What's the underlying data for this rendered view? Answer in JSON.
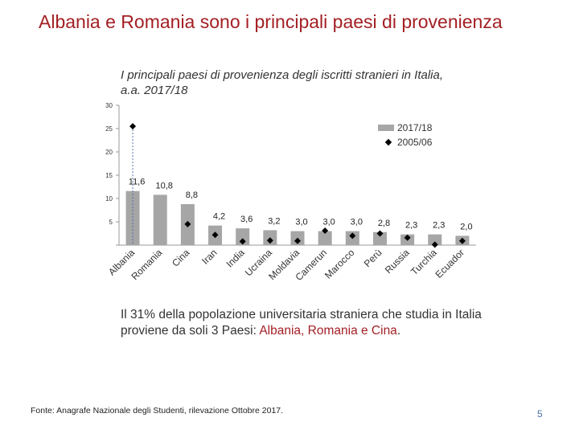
{
  "slide": {
    "title": "Albania e Romania sono i principali paesi di provenienza",
    "body_prefix": "Il 31% della popolazione universitaria straniera che studia in Italia proviene da soli 3 Paesi: ",
    "body_highlight": "Albania, Romania e Cina",
    "body_suffix": ".",
    "source": "Fonte: Anagrafe Nazionale degli Studenti, rilevazione Ottobre 2017.",
    "page_number": "5"
  },
  "colors": {
    "title": "#a31f24",
    "bar": "#a6a6a6",
    "marker": "#000000"
  },
  "chart_data": {
    "type": "bar",
    "title": "I principali paesi di provenienza degli iscritti stranieri in Italia, a.a. 2017/18",
    "categories": [
      "Albania",
      "Romania",
      "Cina",
      "Iran",
      "India",
      "Ucraina",
      "Moldavia",
      "Camerun",
      "Marocco",
      "Perù",
      "Russia",
      "Turchia",
      "Ecuador"
    ],
    "series": [
      {
        "name": "2017/18",
        "style": "bar",
        "values": [
          11.6,
          10.8,
          8.8,
          4.2,
          3.6,
          3.2,
          3.0,
          3.0,
          3.0,
          2.8,
          2.3,
          2.3,
          2.0
        ],
        "labels": [
          "11,6",
          "10,8",
          "8,8",
          "4,2",
          "3,6",
          "3,2",
          "3,0",
          "3,0",
          "3,0",
          "2,8",
          "2,3",
          "2,3",
          "2,0"
        ]
      },
      {
        "name": "2005/06",
        "style": "diamond-marker",
        "values": [
          25.5,
          null,
          4.5,
          2.2,
          0.8,
          1.0,
          0.9,
          3.1,
          2.0,
          2.5,
          1.6,
          0.1,
          0.9
        ]
      }
    ],
    "ylim": [
      0,
      30
    ],
    "yticks": [
      5,
      10,
      15,
      20,
      25,
      30
    ],
    "legend_position": "top-right"
  }
}
